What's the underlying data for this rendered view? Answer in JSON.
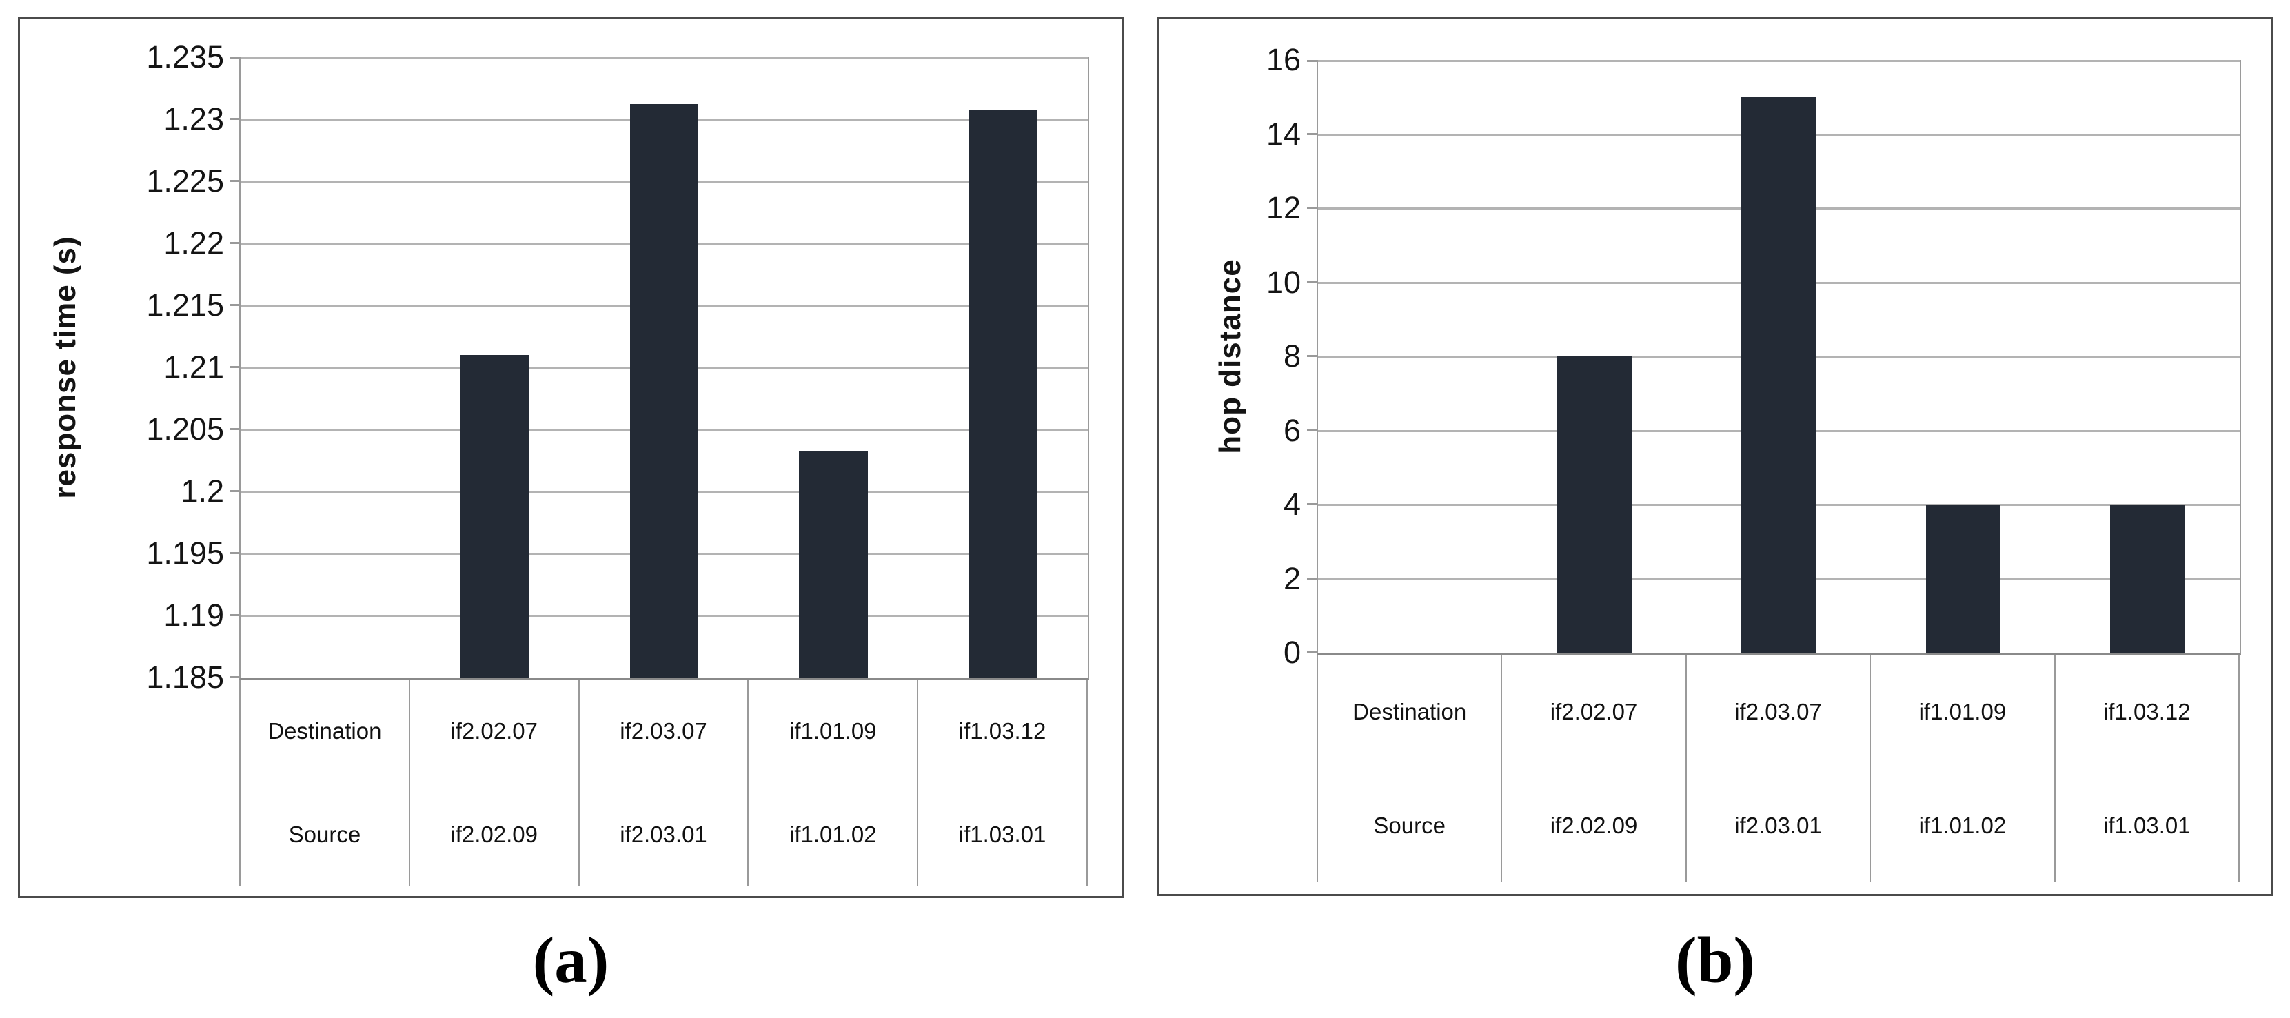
{
  "figure": {
    "captions": {
      "a": "(a)",
      "b": "(b)"
    },
    "colors": {
      "bar": "#232A35",
      "gridline": "#B3B3B3",
      "axis_line": "#8A8A8A",
      "table_border": "#9A9A9A",
      "panel_border": "#4B4B4B",
      "text": "#141414",
      "background": "#FFFFFF"
    }
  },
  "chart_data": [
    {
      "id": "a",
      "type": "bar",
      "title": "",
      "caption": "(a)",
      "ylabel": "response time (s)",
      "xlabel": "",
      "ylim": [
        1.185,
        1.235
      ],
      "ytick_step": 0.005,
      "yticks": [
        "1.235",
        "1.23",
        "1.225",
        "1.22",
        "1.215",
        "1.21",
        "1.205",
        "1.2",
        "1.195",
        "1.19",
        "1.185"
      ],
      "grid": true,
      "legend_position": "none",
      "categories": [
        "if2.02.09 to if2.02.07",
        "if2.03.01 to if2.03.07",
        "if1.01.02 to if1.01.09",
        "if1.03.01 to if1.03.12"
      ],
      "values": [
        1.211,
        1.2312,
        1.2032,
        1.2307
      ],
      "table": {
        "row_labels": [
          "Destination",
          "Source"
        ],
        "rows": [
          [
            "if2.02.07",
            "if2.03.07",
            "if1.01.09",
            "if1.03.12"
          ],
          [
            "if2.02.09",
            "if2.03.01",
            "if1.01.02",
            "if1.03.01"
          ]
        ]
      }
    },
    {
      "id": "b",
      "type": "bar",
      "title": "",
      "caption": "(b)",
      "ylabel": "hop distance",
      "xlabel": "",
      "ylim": [
        0,
        16
      ],
      "ytick_step": 2,
      "yticks": [
        "16",
        "14",
        "12",
        "10",
        "8",
        "6",
        "4",
        "2",
        "0"
      ],
      "grid": true,
      "legend_position": "none",
      "categories": [
        "if2.02.09 to if2.02.07",
        "if2.03.01 to if2.03.07",
        "if1.01.02 to if1.01.09",
        "if1.03.01 to if1.03.12"
      ],
      "values": [
        8,
        15,
        4,
        4
      ],
      "table": {
        "row_labels": [
          "Destination",
          "Source"
        ],
        "rows": [
          [
            "if2.02.07",
            "if2.03.07",
            "if1.01.09",
            "if1.03.12"
          ],
          [
            "if2.02.09",
            "if2.03.01",
            "if1.01.02",
            "if1.03.01"
          ]
        ]
      }
    }
  ]
}
